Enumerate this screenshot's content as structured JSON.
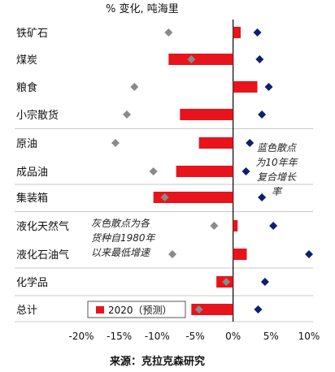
{
  "chart_data": {
    "type": "bar",
    "title": "% 变化, 吨海里",
    "source": "来源：克拉克森研究",
    "categories": [
      "铁矿石",
      "煤炭",
      "粮食",
      "小宗散货",
      "原油",
      "成品油",
      "集装箱",
      "液化天然气",
      "液化石油气",
      "化学品",
      "总计"
    ],
    "series": [
      {
        "name": "2020（预测）",
        "values": [
          1.0,
          -8.5,
          3.2,
          -7.0,
          -4.5,
          -7.5,
          -10.5,
          0.6,
          1.8,
          -2.2,
          -5.5
        ]
      }
    ],
    "markers": {
      "blue": [
        3.2,
        3.5,
        4.7,
        3.8,
        2.2,
        1.7,
        3.8,
        5.3,
        10.0,
        4.2,
        3.3
      ],
      "grey": [
        -8.5,
        -5.5,
        -13.0,
        -14.0,
        -15.5,
        -10.5,
        -9.0,
        -2.5,
        -8.0,
        -0.9,
        -4.5
      ]
    },
    "notes": {
      "blue": "蓝色散点为10年年复合增长率",
      "grey": "灰色散点为各货种自1980年以来最低增速"
    },
    "xlim": [
      -20,
      10
    ],
    "xticks": [
      "-20%",
      "-15%",
      "-10%",
      "-5%",
      "0%",
      "5%",
      "10%"
    ],
    "xtick_values": [
      -20,
      -15,
      -10,
      -5,
      0,
      5,
      10
    ],
    "groups": [
      [
        0,
        1,
        2,
        3
      ],
      [
        4,
        5
      ],
      [
        6
      ],
      [
        7,
        8
      ],
      [
        9
      ],
      [
        10
      ]
    ],
    "colors": {
      "bar": "#e8141c",
      "blue_marker": "#0d1f6e",
      "grey_marker": "#8a8a8a",
      "zero_line": "#000000",
      "separator": "#c8c8c8"
    }
  }
}
